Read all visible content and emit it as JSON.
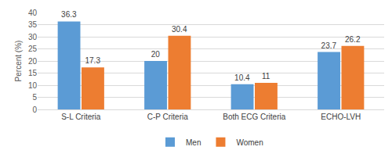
{
  "chart_data": {
    "type": "bar",
    "categories": [
      "S-L Criteria",
      "C-P Criteria",
      "Both ECG Criteria",
      "ECHO-LVH"
    ],
    "series": [
      {
        "name": "Men",
        "color": "#5b9bd5",
        "values": [
          36.3,
          20,
          10.4,
          23.7
        ]
      },
      {
        "name": "Women",
        "color": "#ed7d31",
        "values": [
          17.3,
          30.4,
          11,
          26.2
        ]
      }
    ],
    "y_label": "Percent (%)",
    "ylim": [
      0,
      40
    ],
    "yticks": [
      0,
      5,
      10,
      15,
      20,
      25,
      30,
      35,
      40
    ],
    "grid": true,
    "legend": "bottom",
    "data_labels": true
  }
}
